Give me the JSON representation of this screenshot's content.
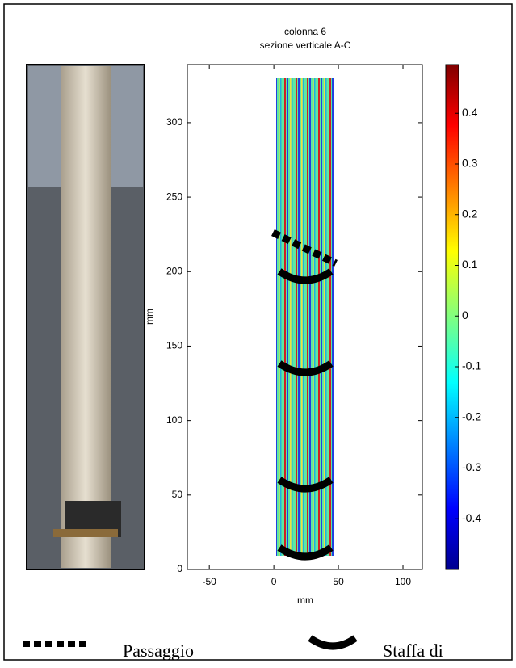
{
  "figure": {
    "title": [
      "colonna 6",
      "sezione verticale A-C"
    ],
    "xlabel": "mm",
    "ylabel": "mm",
    "xlim": [
      -67,
      115
    ],
    "xticks": [
      -50,
      0,
      50,
      100
    ],
    "ylim": [
      0,
      339
    ],
    "yticks": [
      0,
      50,
      100,
      150,
      200,
      250,
      300
    ],
    "clim": [
      -0.5,
      0.496
    ],
    "cticks": [
      0.4,
      0.3,
      0.2,
      0.1,
      0,
      -0.1,
      -0.2,
      -0.3,
      -0.4
    ],
    "legend": [
      "Passaggio",
      "Staffa di"
    ]
  }
}
